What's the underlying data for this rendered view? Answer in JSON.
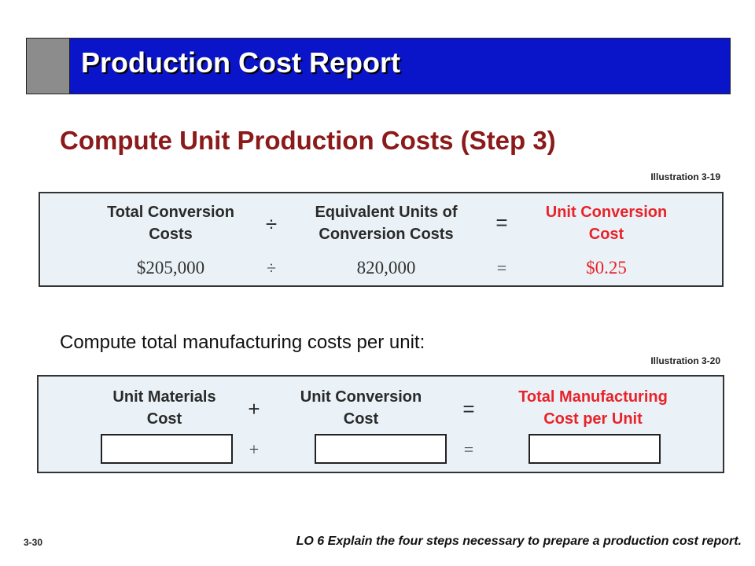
{
  "title": "Production Cost Report",
  "subtitle": "Compute Unit Production Costs (Step 3)",
  "illustration1": {
    "label": "Illustration 3-19",
    "col1": [
      "Total Conversion",
      "Costs"
    ],
    "op": "÷",
    "col2": [
      "Equivalent Units of",
      "Conversion Costs"
    ],
    "eq": "=",
    "col3": [
      "Unit Conversion",
      "Cost"
    ],
    "val1": "$205,000",
    "val2": "820,000",
    "val3": "$0.25",
    "accent_color": "#e8232a"
  },
  "instruction": "Compute total manufacturing costs per unit:",
  "illustration2": {
    "label": "Illustration 3-20",
    "col1": [
      "Unit Materials",
      "Cost"
    ],
    "op": "+",
    "col2": [
      "Unit Conversion",
      "Cost"
    ],
    "eq": "=",
    "col3": [
      "Total Manufacturing",
      "Cost per Unit"
    ]
  },
  "slide_number": "3-30",
  "footer": "LO 6  Explain the four steps necessary to prepare a production cost report.",
  "colors": {
    "title_bar": "#0a14c8",
    "title_side": "#8c8c8c",
    "subtitle": "#8b1a1a",
    "box_bg": "#eaf2f7"
  }
}
